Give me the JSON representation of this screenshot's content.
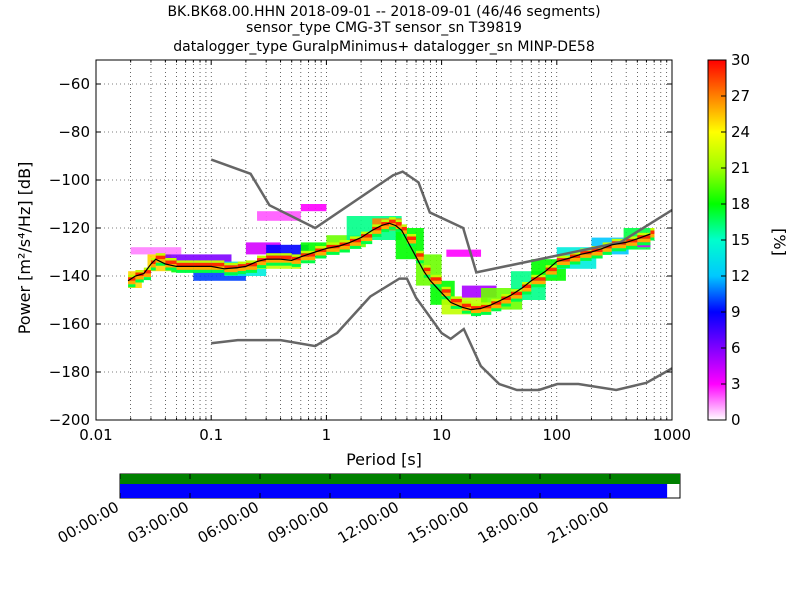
{
  "chart_data": {
    "type": "heatmap",
    "title_lines": [
      "BK.BK68.00.HHN   2018-09-01 -- 2018-09-01  (46/46 segments)",
      "sensor_type CMG-3T sensor_sn T39819",
      "datalogger_type GuralpMinimus+ datalogger_sn MINP-DE58"
    ],
    "xlabel": "Period [s]",
    "ylabel": "Power [m²/s⁴/Hz] [dB]",
    "xscale": "log",
    "xlim": [
      0.01,
      1000
    ],
    "ylim": [
      -200,
      -50
    ],
    "x_ticks": [
      0.01,
      0.1,
      1,
      10,
      100,
      1000
    ],
    "x_tick_labels": [
      "0.01",
      "0.1",
      "1",
      "10",
      "100",
      "1000"
    ],
    "y_ticks": [
      -200,
      -180,
      -160,
      -140,
      -120,
      -100,
      -80,
      -60
    ],
    "y_tick_labels": [
      "−200",
      "−180",
      "−160",
      "−140",
      "−120",
      "−100",
      "−80",
      "−60"
    ],
    "grid": "dotted",
    "colorbar": {
      "label": "[%]",
      "range": [
        0,
        30
      ],
      "ticks": [
        0,
        3,
        6,
        9,
        12,
        15,
        18,
        21,
        24,
        27,
        30
      ],
      "tick_labels": [
        "0",
        "3",
        "6",
        "9",
        "12",
        "15",
        "18",
        "21",
        "24",
        "27",
        "30"
      ],
      "colormap": "pqlx"
    },
    "noise_models": {
      "high": {
        "period": [
          0.1,
          0.22,
          0.32,
          0.8,
          3.8,
          4.6,
          6.3,
          7.9,
          15.4,
          20,
          354.8,
          1000
        ],
        "power": [
          -91.5,
          -97.4,
          -110.5,
          -120,
          -98,
          -96.5,
          -101,
          -113.5,
          -120,
          -138.5,
          -126,
          -112.5
        ]
      },
      "low": {
        "period": [
          0.1,
          0.17,
          0.4,
          0.8,
          1.24,
          2.4,
          4.3,
          5,
          6,
          10,
          12,
          15.6,
          21.9,
          31.6,
          45,
          70,
          101,
          154,
          328,
          600,
          1000
        ],
        "power": [
          -168,
          -166.7,
          -166.7,
          -169.2,
          -163.7,
          -148.6,
          -141.1,
          -141.1,
          -149,
          -163.8,
          -166.2,
          -162.1,
          -177.5,
          -185,
          -187.5,
          -187.5,
          -185,
          -185,
          -187.5,
          -184.5,
          -178.5
        ]
      }
    },
    "mode_curve": {
      "period": [
        0.019,
        0.022,
        0.026,
        0.03,
        0.033,
        0.04,
        0.05,
        0.07,
        0.1,
        0.13,
        0.17,
        0.2,
        0.25,
        0.3,
        0.4,
        0.5,
        0.6,
        0.8,
        1,
        1.3,
        1.6,
        2,
        2.5,
        3,
        3.5,
        4,
        4.5,
        5,
        6,
        7,
        8,
        10,
        12,
        15,
        18,
        22,
        27,
        33,
        40,
        50,
        60,
        80,
        100,
        130,
        160,
        200,
        250,
        300,
        400,
        500,
        650
      ],
      "power": [
        -142,
        -140,
        -139,
        -135,
        -133,
        -135,
        -136,
        -136,
        -136,
        -137,
        -136.5,
        -136,
        -134,
        -133,
        -133,
        -133.5,
        -132,
        -130,
        -128.5,
        -127.5,
        -126,
        -124,
        -121,
        -119,
        -118,
        -119,
        -121,
        -125,
        -132,
        -138,
        -142,
        -147,
        -151,
        -153,
        -154,
        -153.5,
        -152,
        -150,
        -148,
        -145,
        -142,
        -138,
        -134,
        -132.5,
        -131,
        -130,
        -128.5,
        -127,
        -126,
        -124.5,
        -122.5
      ]
    },
    "histogram_bands": [
      {
        "period": [
          0.019,
          0.025
        ],
        "power": [
          -145,
          -138
        ],
        "percent": 25
      },
      {
        "period": [
          0.02,
          0.055
        ],
        "power": [
          -131,
          -128
        ],
        "percent": 1.5
      },
      {
        "period": [
          0.028,
          0.045
        ],
        "power": [
          -138,
          -131
        ],
        "percent": 25
      },
      {
        "period": [
          0.04,
          0.15
        ],
        "power": [
          -135,
          -131
        ],
        "percent": 6
      },
      {
        "period": [
          0.045,
          0.13
        ],
        "power": [
          -138.5,
          -135
        ],
        "percent": 18
      },
      {
        "period": [
          0.07,
          0.2
        ],
        "power": [
          -142,
          -137.5
        ],
        "percent": 10
      },
      {
        "period": [
          0.13,
          0.3
        ],
        "power": [
          -140,
          -134
        ],
        "percent": 14
      },
      {
        "period": [
          0.2,
          0.4
        ],
        "power": [
          -131,
          -126
        ],
        "percent": 4
      },
      {
        "period": [
          0.25,
          0.6
        ],
        "power": [
          -137,
          -133
        ],
        "percent": 22
      },
      {
        "period": [
          0.3,
          0.7
        ],
        "power": [
          -132,
          -127
        ],
        "percent": 9
      },
      {
        "period": [
          0.25,
          0.6
        ],
        "power": [
          -117,
          -113
        ],
        "percent": 2
      },
      {
        "period": [
          0.6,
          1.2
        ],
        "power": [
          -131,
          -126
        ],
        "percent": 18
      },
      {
        "period": [
          0.6,
          1.0
        ],
        "power": [
          -113,
          -110
        ],
        "percent": 3
      },
      {
        "period": [
          1.0,
          2.2
        ],
        "power": [
          -128,
          -123
        ],
        "percent": 20
      },
      {
        "period": [
          1.5,
          4.5
        ],
        "power": [
          -125,
          -115
        ],
        "percent": 16
      },
      {
        "period": [
          2.5,
          4.5
        ],
        "power": [
          -121,
          -116
        ],
        "percent": 27
      },
      {
        "period": [
          4,
          7
        ],
        "power": [
          -133,
          -120
        ],
        "percent": 18
      },
      {
        "period": [
          6,
          10
        ],
        "power": [
          -144,
          -131
        ],
        "percent": 20
      },
      {
        "period": [
          8,
          13
        ],
        "power": [
          -152,
          -142
        ],
        "percent": 18
      },
      {
        "period": [
          10,
          25
        ],
        "power": [
          -156,
          -149
        ],
        "percent": 22
      },
      {
        "period": [
          11,
          22
        ],
        "power": [
          -132,
          -129
        ],
        "percent": 3
      },
      {
        "period": [
          15,
          30
        ],
        "power": [
          -149,
          -144
        ],
        "percent": 5
      },
      {
        "period": [
          22,
          50
        ],
        "power": [
          -154,
          -145
        ],
        "percent": 20
      },
      {
        "period": [
          40,
          80
        ],
        "power": [
          -150,
          -138
        ],
        "percent": 16
      },
      {
        "period": [
          60,
          120
        ],
        "power": [
          -142,
          -133
        ],
        "percent": 18
      },
      {
        "period": [
          100,
          220
        ],
        "power": [
          -137,
          -128
        ],
        "percent": 14
      },
      {
        "period": [
          200,
          420
        ],
        "power": [
          -131,
          -124
        ],
        "percent": 12
      },
      {
        "period": [
          380,
          650
        ],
        "power": [
          -129,
          -120
        ],
        "percent": 17
      },
      {
        "period": [
          420,
          650
        ],
        "power": [
          -128,
          -125
        ],
        "percent": 4
      }
    ]
  },
  "timeline": {
    "tick_labels": [
      "00:00:00",
      "03:00:00",
      "06:00:00",
      "09:00:00",
      "12:00:00",
      "15:00:00",
      "18:00:00",
      "21:00:00"
    ],
    "tick_hours": [
      0,
      3,
      6,
      9,
      12,
      15,
      18,
      21
    ],
    "data_availability_fraction": 1.0,
    "psd_coverage_fraction": 0.977,
    "data_color": "#008000",
    "psd_color": "#0000ff"
  }
}
